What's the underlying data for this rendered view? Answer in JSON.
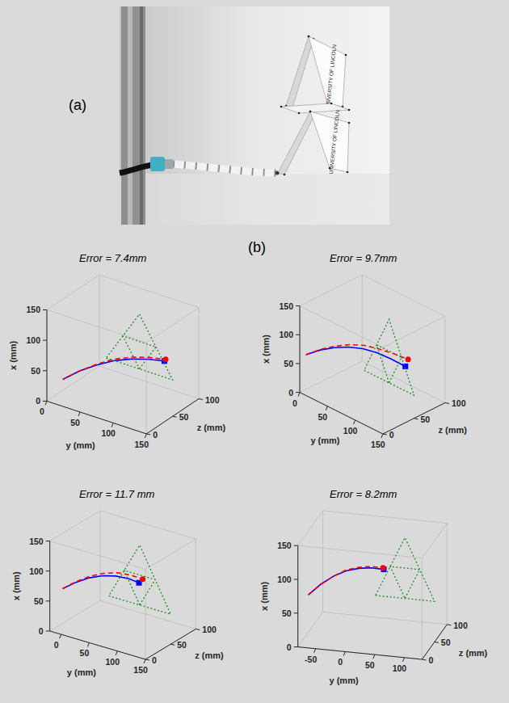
{
  "figure": {
    "panel_labels": [
      "(a)",
      "(b)"
    ],
    "photo": {
      "card_text": "UNIVERSITY OF LINCOLN"
    }
  },
  "chart_data": [
    {
      "type": "line3d",
      "annotation": "Error = 7.4mm",
      "xlabel": "x (mm)",
      "ylabel": "y (mm)",
      "zlabel": "z (mm)",
      "xlim": [
        0,
        150
      ],
      "xticks": [
        0,
        50,
        100,
        150
      ],
      "ylim": [
        0,
        150
      ],
      "yticks": [
        0,
        50,
        100,
        150
      ],
      "zlim": [
        0,
        100
      ],
      "zticks": [
        0,
        50,
        100
      ],
      "series": [
        {
          "color": "#0000ff",
          "line_style": "solid",
          "x": [
            40,
            57,
            70,
            80,
            86,
            89,
            89
          ],
          "y": [
            20,
            40,
            60,
            80,
            100,
            120,
            140
          ],
          "z": [
            5,
            12,
            19,
            26,
            33,
            40,
            47
          ]
        },
        {
          "color": "#ff0000",
          "line_style": "dashed",
          "x": [
            40,
            57,
            71,
            82,
            88,
            90,
            88
          ],
          "y": [
            20,
            40,
            60,
            80,
            100,
            120,
            138
          ],
          "z": [
            5,
            12,
            20,
            27,
            35,
            43,
            52
          ]
        },
        {
          "color": "#0000ff",
          "marker": "square",
          "x": [
            89
          ],
          "y": [
            140
          ],
          "z": [
            47
          ]
        },
        {
          "color": "#ff0000",
          "marker": "circle",
          "x": [
            88
          ],
          "y": [
            138
          ],
          "z": [
            52
          ]
        },
        {
          "color": "#1f8f1f",
          "line_style": "dotted",
          "x": [
            60,
            60,
            150,
            60,
            null,
            60,
            105,
            105,
            60
          ],
          "y": [
            50,
            150,
            100,
            50,
            null,
            100,
            125,
            75,
            100
          ],
          "z": [
            50,
            50,
            50,
            50,
            null,
            50,
            50,
            50,
            50
          ]
        }
      ]
    },
    {
      "type": "line3d",
      "annotation": "Error = 9.7mm",
      "xlabel": "x (mm)",
      "ylabel": "y (mm)",
      "zlabel": "z (mm)",
      "xlim": [
        0,
        150
      ],
      "xticks": [
        0,
        50,
        100,
        150
      ],
      "ylim": [
        0,
        150
      ],
      "yticks": [
        0,
        50,
        100,
        150
      ],
      "zlim": [
        0,
        100
      ],
      "zticks": [
        0,
        50,
        100
      ],
      "series": [
        {
          "color": "#0000ff",
          "line_style": "solid",
          "x": [
            60,
            75,
            86,
            94,
            98,
            98,
            94,
            88
          ],
          "y": [
            0,
            20,
            40,
            60,
            80,
            100,
            120,
            140
          ],
          "z": [
            10,
            15,
            20,
            25,
            30,
            35,
            40,
            45
          ]
        },
        {
          "color": "#ff0000",
          "line_style": "dashed",
          "x": [
            60,
            76,
            88,
            97,
            102,
            102,
            99,
            94
          ],
          "y": [
            0,
            20,
            40,
            60,
            80,
            100,
            120,
            136
          ],
          "z": [
            10,
            15,
            21,
            27,
            33,
            39,
            46,
            53
          ]
        },
        {
          "color": "#0000ff",
          "marker": "square",
          "x": [
            88
          ],
          "y": [
            140
          ],
          "z": [
            45
          ]
        },
        {
          "color": "#ff0000",
          "marker": "circle",
          "x": [
            94
          ],
          "y": [
            136
          ],
          "z": [
            53
          ]
        },
        {
          "color": "#1f8f1f",
          "line_style": "dotted",
          "x": [
            40,
            40,
            150,
            40,
            null,
            40,
            95,
            95,
            40
          ],
          "y": [
            60,
            150,
            105,
            60,
            null,
            105,
            127.5,
            82.5,
            105
          ],
          "z": [
            50,
            50,
            50,
            50,
            null,
            50,
            50,
            50,
            50
          ]
        }
      ]
    },
    {
      "type": "line3d",
      "annotation": "Error = 11.7 mm",
      "xlabel": "x (mm)",
      "ylabel": "y (mm)",
      "zlabel": "z (mm)",
      "xlim": [
        0,
        150
      ],
      "xticks": [
        0,
        50,
        100,
        150
      ],
      "ylim": [
        -20,
        150
      ],
      "yticks": [
        0,
        50,
        100,
        150
      ],
      "zlim": [
        0,
        100
      ],
      "zticks": [
        0,
        50,
        100
      ],
      "series": [
        {
          "color": "#0000ff",
          "line_style": "solid",
          "x": [
            62,
            76,
            87,
            94,
            97,
            96,
            92
          ],
          "y": [
            -15,
            5,
            25,
            45,
            65,
            85,
            100
          ],
          "z": [
            20,
            24,
            28,
            32,
            36,
            40,
            43
          ]
        },
        {
          "color": "#ff0000",
          "line_style": "dashed",
          "x": [
            62,
            77,
            89,
            97,
            101,
            100,
            96
          ],
          "y": [
            -15,
            5,
            25,
            45,
            65,
            85,
            102
          ],
          "z": [
            20,
            24,
            29,
            34,
            39,
            44,
            48
          ]
        },
        {
          "color": "#0000ff",
          "marker": "square",
          "x": [
            92
          ],
          "y": [
            100
          ],
          "z": [
            43
          ]
        },
        {
          "color": "#ff0000",
          "marker": "circle",
          "x": [
            96
          ],
          "y": [
            102
          ],
          "z": [
            48
          ]
        },
        {
          "color": "#1f8f1f",
          "line_style": "dotted",
          "x": [
            50,
            50,
            150,
            50,
            null,
            50,
            100,
            100,
            50
          ],
          "y": [
            40,
            150,
            95,
            40,
            null,
            95,
            122.5,
            67.5,
            95
          ],
          "z": [
            50,
            50,
            50,
            50,
            null,
            50,
            50,
            50,
            50
          ]
        }
      ]
    },
    {
      "type": "line3d",
      "annotation": "Error = 8.2mm",
      "xlabel": "x (mm)",
      "ylabel": "y (mm)",
      "zlabel": "z (mm)",
      "xlim": [
        0,
        150
      ],
      "xticks": [
        0,
        50,
        100,
        150
      ],
      "ylim": [
        -80,
        130
      ],
      "yticks": [
        -50,
        0,
        50,
        100
      ],
      "zlim": [
        0,
        100
      ],
      "zticks": [
        0,
        50,
        100
      ],
      "series": [
        {
          "color": "#0000ff",
          "line_style": "solid",
          "x": [
            62,
            78,
            90,
            98,
            102,
            103,
            101
          ],
          "y": [
            -75,
            -55,
            -35,
            -15,
            5,
            25,
            45
          ],
          "z": [
            30,
            33,
            36,
            39,
            42,
            45,
            48
          ]
        },
        {
          "color": "#ff0000",
          "line_style": "dashed",
          "x": [
            62,
            78,
            90,
            99,
            103,
            104,
            101
          ],
          "y": [
            -75,
            -55,
            -35,
            -15,
            5,
            25,
            42
          ],
          "z": [
            30,
            33,
            36,
            40,
            43,
            47,
            52
          ]
        },
        {
          "color": "#0000ff",
          "marker": "square",
          "x": [
            101
          ],
          "y": [
            45
          ],
          "z": [
            48
          ]
        },
        {
          "color": "#ff0000",
          "marker": "circle",
          "x": [
            101
          ],
          "y": [
            42
          ],
          "z": [
            52
          ]
        },
        {
          "color": "#1f8f1f",
          "line_style": "dotted",
          "x": [
            60,
            60,
            150,
            60,
            null,
            60,
            105,
            105,
            60
          ],
          "y": [
            30,
            130,
            80,
            30,
            null,
            80,
            105,
            55,
            80
          ],
          "z": [
            50,
            50,
            50,
            50,
            null,
            50,
            50,
            50,
            50
          ]
        }
      ]
    }
  ]
}
